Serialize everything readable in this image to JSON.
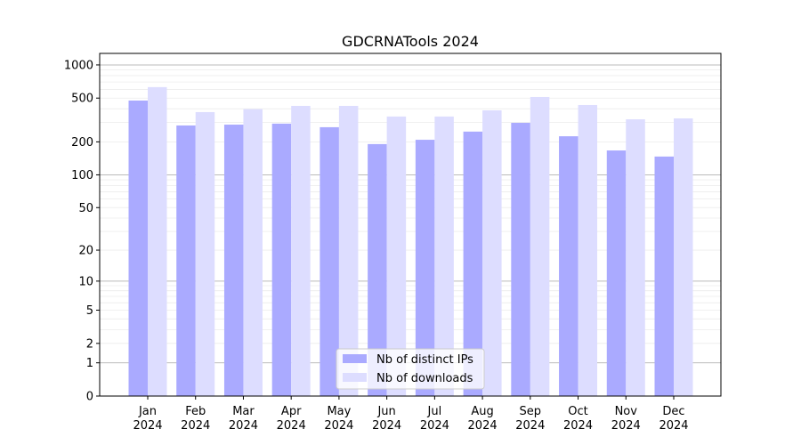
{
  "chart_data": {
    "type": "bar",
    "title": "GDCRNATools 2024",
    "xlabel": "",
    "ylabel": "",
    "y_scale": "log10(1+y)",
    "ylim": [
      0,
      1270
    ],
    "yticks": [
      0,
      1,
      2,
      5,
      10,
      20,
      50,
      100,
      200,
      500,
      1000
    ],
    "ytick_labels": [
      "0",
      "1",
      "2",
      "5",
      "10",
      "20",
      "50",
      "100",
      "200",
      "500",
      "1000"
    ],
    "grid": true,
    "legend_placement": "bottom-center",
    "categories": [
      "Jan\n2024",
      "Feb\n2024",
      "Mar\n2024",
      "Apr\n2024",
      "May\n2024",
      "Jun\n2024",
      "Jul\n2024",
      "Aug\n2024",
      "Sep\n2024",
      "Oct\n2024",
      "Nov\n2024",
      "Dec\n2024"
    ],
    "category_months": [
      "Jan",
      "Feb",
      "Mar",
      "Apr",
      "May",
      "Jun",
      "Jul",
      "Aug",
      "Sep",
      "Oct",
      "Nov",
      "Dec"
    ],
    "category_year": "2024",
    "series": [
      {
        "name": "Nb of distinct IPs",
        "color": "#aaaaff",
        "values": [
          475,
          282,
          287,
          293,
          272,
          191,
          209,
          248,
          298,
          225,
          167,
          147
        ]
      },
      {
        "name": "Nb of downloads",
        "color": "#ddddff",
        "values": [
          629,
          373,
          397,
          425,
          425,
          340,
          340,
          387,
          512,
          433,
          321,
          327
        ]
      }
    ]
  }
}
